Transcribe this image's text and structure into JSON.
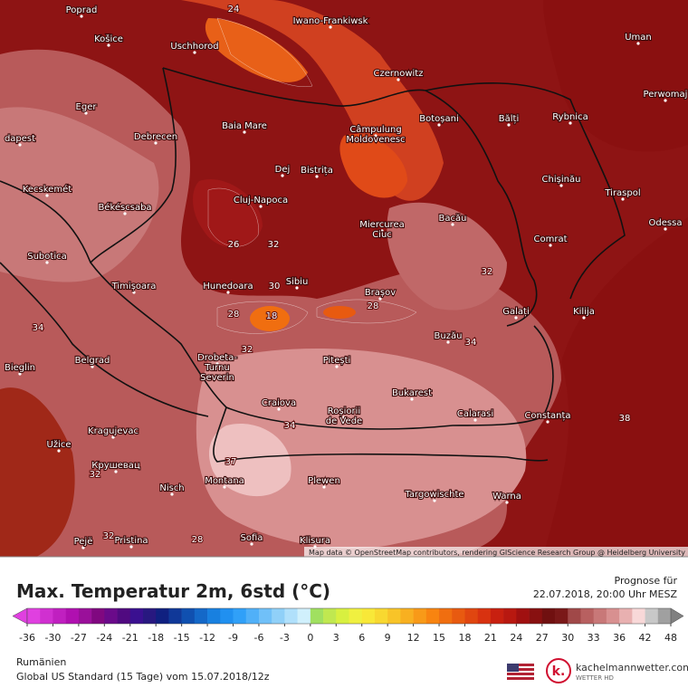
{
  "map": {
    "cities": [
      "Poprad",
      "Košice",
      "Uschhorod",
      "Iwano-Frankiwsk",
      "Uman",
      "Czernowitz",
      "Perwomaj",
      "Eger",
      "Baia Mare",
      [
        "Câmpulung",
        "Moldovenesc"
      ],
      "Botoșani",
      "Bălți",
      "Rybnica",
      "dapest",
      "Debrecen",
      "Dej",
      "Bistrița",
      "Chișinău",
      "Kecskemét",
      "Cluj-Napoca",
      "Tiraspol",
      "Békéscsaba",
      "Bacău",
      [
        "Miercurea",
        "Ciuc"
      ],
      "Odessa",
      "Comrat",
      "Subotica",
      "Timișoara",
      "Hunedoara",
      "Sibiu",
      "Brașov",
      "Galați",
      "Kilija",
      "Buzău",
      "Belgrad",
      [
        "Drobeta-",
        "Turnu",
        "Severin"
      ],
      "Pitești",
      "Bieglin",
      "Craiova",
      [
        "Roșiorii",
        "de Vede"
      ],
      "Bukarest",
      "Calarasi",
      "Constanța",
      "Kragujevac",
      "Užice",
      "Крушевац",
      "Montana",
      "Plewen",
      "Nisch",
      "Targowischte",
      "Warna",
      "Pejë",
      "Pristina",
      "Sofia",
      "Klisura"
    ],
    "contour_labels": [
      24,
      32,
      26,
      32,
      34,
      18,
      28,
      32,
      30,
      28,
      34,
      34,
      37,
      32,
      32,
      38,
      28
    ],
    "attribution": "Map data © OpenStreetMap contributors, rendering GIScience Research Group @ Heidelberg University"
  },
  "legend": {
    "title": "Max. Temperatur 2m, 6std (°C)",
    "forecast_label": "Prognose für",
    "forecast_time": "22.07.2018, 20:00 Uhr MESZ",
    "ticks": [
      -36,
      -30,
      -27,
      -24,
      -21,
      -18,
      -15,
      -12,
      -9,
      -6,
      -3,
      0,
      3,
      6,
      9,
      12,
      15,
      18,
      21,
      24,
      27,
      30,
      33,
      36,
      42,
      48
    ],
    "colors": [
      "#e040e0",
      "#d030d0",
      "#c020c0",
      "#b010b0",
      "#9a109a",
      "#800880",
      "#6a0a8a",
      "#500a80",
      "#3a1090",
      "#281880",
      "#102080",
      "#103898",
      "#1050b0",
      "#1468c8",
      "#1880e0",
      "#2090f0",
      "#30a0f8",
      "#50b0f8",
      "#70c0f8",
      "#90d0f8",
      "#b0e0fb",
      "#d0f0fc",
      "#a0e060",
      "#c0e850",
      "#d8f040",
      "#f0f040",
      "#f8e838",
      "#f8d830",
      "#f8c428",
      "#f8b020",
      "#f89a18",
      "#f88410",
      "#f06e10",
      "#e85a10",
      "#e04610",
      "#d83210",
      "#c82010",
      "#b81810",
      "#a01010",
      "#881010",
      "#701010",
      "#7a1818",
      "#a04848",
      "#b86060",
      "#c87878",
      "#d89090",
      "#e8b0b0",
      "#f8d8d8",
      "#c8c8c8",
      "#a0a0a0"
    ],
    "low_color": "#e040e0",
    "high_color": "#808080"
  },
  "footer": {
    "region": "Rumänien",
    "model": "Global US Standard (15 Tage) vom 15.07.2018/12z",
    "brand": "kachelmannwetter.com",
    "brand_sub": "WETTER HD"
  }
}
